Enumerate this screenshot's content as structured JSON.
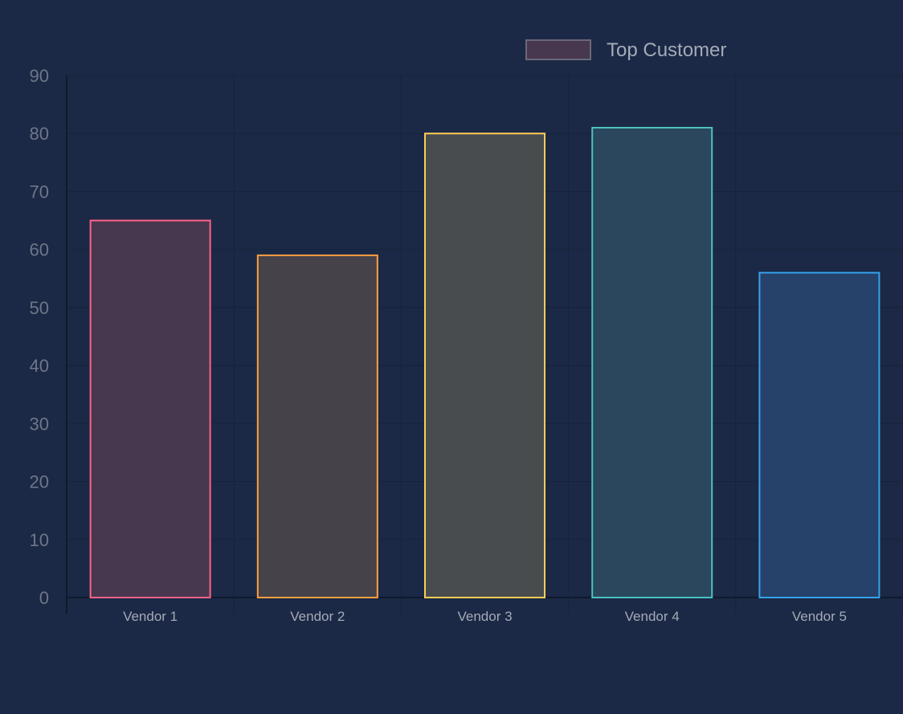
{
  "chart_data": {
    "type": "bar",
    "categories": [
      "Vendor 1",
      "Vendor 2",
      "Vendor 3",
      "Vendor 4",
      "Vendor 5"
    ],
    "series": [
      {
        "name": "Top Customer",
        "values": [
          65,
          59,
          80,
          81,
          56
        ]
      }
    ],
    "ylim": [
      0,
      90
    ],
    "yticks": [
      "0",
      "10",
      "20",
      "30",
      "40",
      "50",
      "60",
      "70",
      "80",
      "90"
    ],
    "title": "",
    "xlabel": "",
    "ylabel": "",
    "grid": true,
    "legend_position": "top",
    "bar_border_colors": [
      "#ff6384",
      "#ff9f40",
      "#ffcd56",
      "#4bc0c0",
      "#36a2eb"
    ],
    "bar_fill_colors": [
      "#47374f",
      "#45424a",
      "#494c4f",
      "#2a475d",
      "#26416a"
    ],
    "legend_swatch_color": "#47374f",
    "legend_swatch_border": "#6b6878"
  }
}
